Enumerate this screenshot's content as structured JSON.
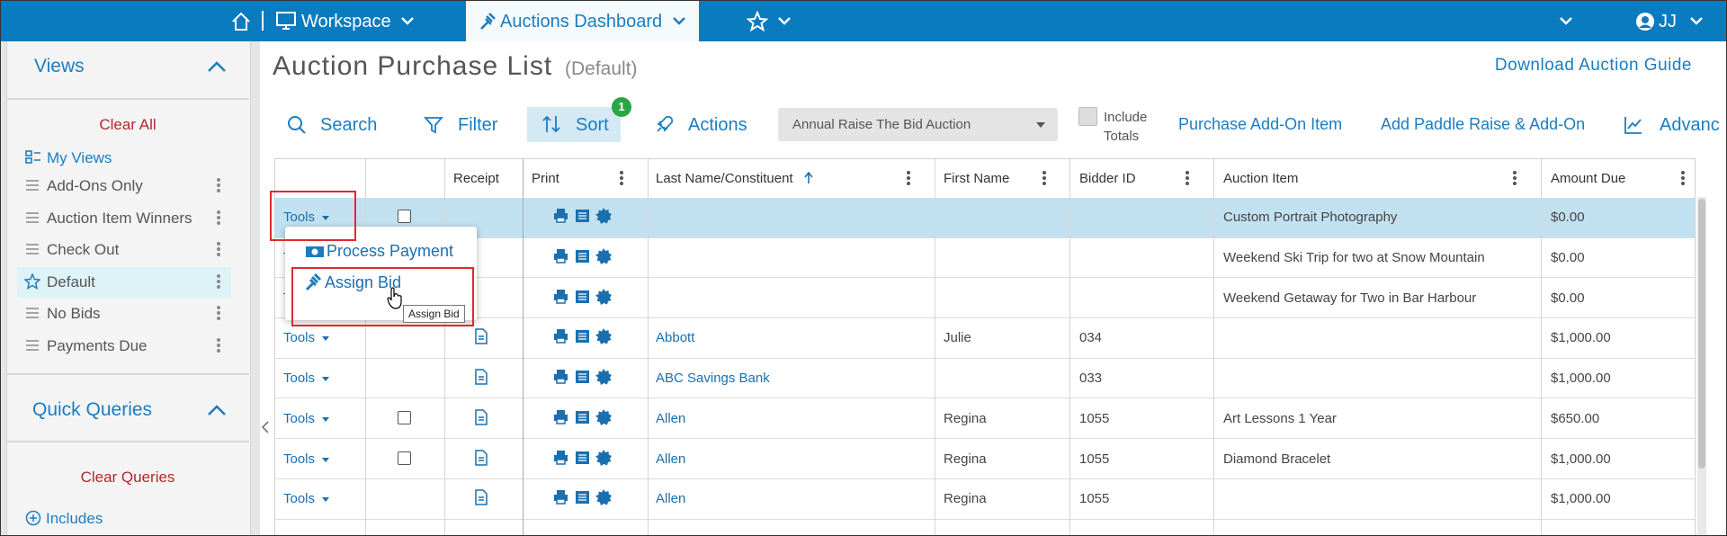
{
  "topnav": {
    "workspace": "Workspace",
    "dashboard": "Auctions Dashboard",
    "user": "JJ"
  },
  "sidebar": {
    "views_title": "Views",
    "clear_all": "Clear All",
    "my_views": "My Views",
    "views": [
      {
        "label": "Add-Ons Only"
      },
      {
        "label": "Auction Item Winners"
      },
      {
        "label": "Check Out"
      },
      {
        "label": "Default",
        "selected": true
      },
      {
        "label": "No Bids"
      },
      {
        "label": "Payments Due"
      }
    ],
    "quick_queries_title": "Quick Queries",
    "clear_queries": "Clear Queries",
    "includes": "Includes"
  },
  "header": {
    "title": "Auction Purchase List",
    "subtitle": "(Default)",
    "download": "Download Auction Guide"
  },
  "toolbar": {
    "search": "Search",
    "filter": "Filter",
    "sort": "Sort",
    "sort_badge": 1,
    "actions": "Actions",
    "auction_select": "Annual Raise The Bid Auction",
    "include_totals": "Include Totals",
    "purchase_addon": "Purchase Add-On Item",
    "add_paddle": "Add Paddle Raise & Add-On",
    "advanced": "Advanc"
  },
  "table": {
    "columns": [
      "Receipt",
      "Print",
      "Last Name/Constituent",
      "First Name",
      "Bidder ID",
      "Auction Item",
      "Amount Due"
    ],
    "rows": [
      {
        "tools": "Tools",
        "checkbox": true,
        "item": "Custom Portrait Photography",
        "amount": "$0.00",
        "selected": true
      },
      {
        "tools": "Tools",
        "item": "Weekend Ski Trip for two at Snow Mountain",
        "amount": "$0.00"
      },
      {
        "tools": "Tools",
        "item": "Weekend Getaway for Two in Bar Harbour",
        "amount": "$0.00"
      },
      {
        "tools": "Tools",
        "receipt": true,
        "last": "Abbott",
        "first": "Julie",
        "bidder": "034",
        "amount": "$1,000.00"
      },
      {
        "tools": "Tools",
        "receipt": true,
        "last": "ABC Savings Bank",
        "bidder": "033",
        "amount": "$1,000.00"
      },
      {
        "tools": "Tools",
        "checkbox": true,
        "receipt": true,
        "last": "Allen",
        "first": "Regina",
        "bidder": "1055",
        "item": "Art Lessons 1 Year",
        "amount": "$650.00"
      },
      {
        "tools": "Tools",
        "checkbox": true,
        "receipt": true,
        "last": "Allen",
        "first": "Regina",
        "bidder": "1055",
        "item": "Diamond Bracelet",
        "amount": "$1,000.00"
      },
      {
        "tools": "Tools",
        "receipt": true,
        "last": "Allen",
        "first": "Regina",
        "bidder": "1055",
        "amount": "$1,000.00"
      }
    ]
  },
  "menu": {
    "items": [
      "Process Payment",
      "Assign Bid"
    ],
    "tooltip": "Assign Bid"
  }
}
